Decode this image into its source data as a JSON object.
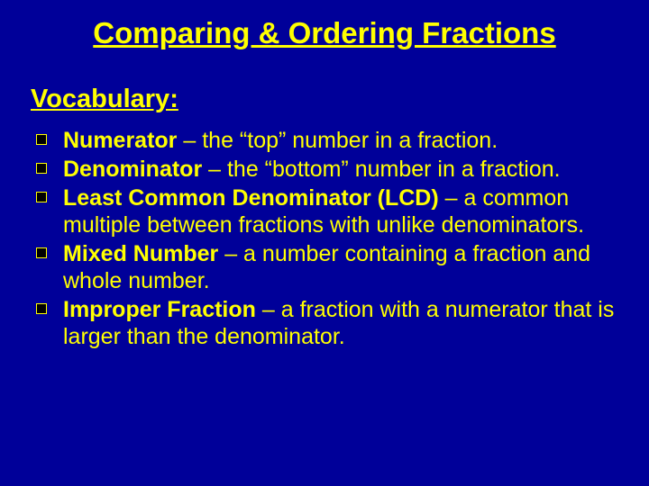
{
  "colors": {
    "background": "#000099",
    "text": "#ffff00",
    "bullet_fill": "#000000",
    "bullet_border": "#ffff00"
  },
  "typography": {
    "title_fontsize": 33,
    "subtitle_fontsize": 29,
    "body_fontsize": 25,
    "font_family": "Arial"
  },
  "title": "Comparing & Ordering Fractions",
  "subtitle": "Vocabulary:",
  "items": [
    {
      "term": "Numerator",
      "def": " – the “top” number in a fraction."
    },
    {
      "term": "Denominator",
      "def": " – the “bottom” number in a fraction."
    },
    {
      "term": "Least Common Denominator (LCD)",
      "def": " – a common multiple between fractions with unlike denominators."
    },
    {
      "term": "Mixed Number",
      "def": " – a number containing a fraction and whole number."
    },
    {
      "term": "Improper Fraction",
      "def": " – a fraction with a numerator that is larger than the denominator."
    }
  ]
}
